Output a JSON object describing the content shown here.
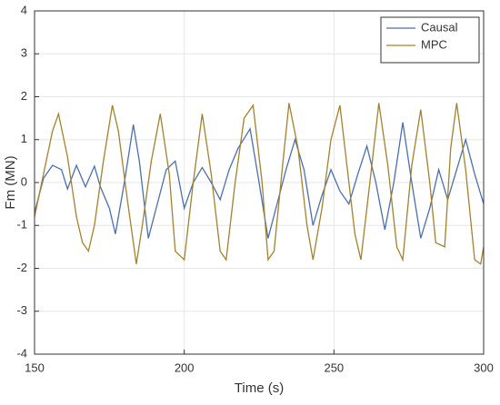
{
  "chart_data": {
    "type": "line",
    "xlabel": "Time (s)",
    "ylabel": "Fm (MN)",
    "xlim": [
      150,
      300
    ],
    "xticks": [
      150,
      200,
      250,
      300
    ],
    "ylim": [
      -4,
      4
    ],
    "yticks": [
      -4,
      -3,
      -2,
      -1,
      0,
      1,
      2,
      3,
      4
    ],
    "grid": true,
    "legend": "upper right",
    "series": [
      {
        "name": "Causal",
        "color": "#4a6fb5",
        "x": [
          150,
          153,
          156,
          159,
          161,
          164,
          167,
          170,
          172,
          175,
          177,
          180,
          183,
          185,
          188,
          191,
          194,
          197,
          200,
          203,
          206,
          209,
          212,
          215,
          218,
          222,
          225,
          228,
          231,
          234,
          237,
          240,
          243,
          246,
          249,
          252,
          255,
          258,
          261,
          264,
          267,
          270,
          273,
          276,
          279,
          282,
          285,
          288,
          291,
          294,
          297,
          300
        ],
        "values": [
          -0.7,
          0.1,
          0.4,
          0.3,
          -0.15,
          0.4,
          -0.1,
          0.38,
          -0.1,
          -0.6,
          -1.2,
          0.0,
          1.35,
          0.5,
          -1.3,
          -0.5,
          0.3,
          0.5,
          -0.6,
          0.0,
          0.35,
          0.0,
          -0.4,
          0.3,
          0.8,
          1.25,
          0.0,
          -1.3,
          -0.5,
          0.3,
          1.0,
          0.3,
          -1.0,
          -0.3,
          0.3,
          -0.2,
          -0.5,
          0.2,
          0.85,
          0.0,
          -1.1,
          0.0,
          1.4,
          0.0,
          -1.3,
          -0.6,
          0.3,
          -0.4,
          0.3,
          1.0,
          0.2,
          -0.5
        ]
      },
      {
        "name": "MPC",
        "color": "#a5822a",
        "x": [
          150,
          153,
          156,
          158,
          161,
          164,
          166,
          168,
          170,
          173,
          176,
          178,
          181,
          184,
          186,
          189,
          192,
          195,
          197,
          200,
          203,
          206,
          209,
          212,
          214,
          217,
          220,
          223,
          226,
          228,
          230,
          233,
          235,
          238,
          241,
          243,
          246,
          249,
          252,
          254,
          257,
          259,
          262,
          265,
          268,
          271,
          273,
          276,
          279,
          282,
          284,
          287,
          289,
          291,
          294,
          297,
          299,
          300
        ],
        "values": [
          -0.8,
          0.2,
          1.2,
          1.6,
          0.6,
          -0.8,
          -1.4,
          -1.6,
          -1.0,
          0.5,
          1.8,
          1.2,
          -0.4,
          -1.9,
          -1.0,
          0.5,
          1.6,
          0.2,
          -1.6,
          -1.8,
          0.0,
          1.6,
          0.2,
          -1.6,
          -1.8,
          0.0,
          1.5,
          1.8,
          0.0,
          -1.8,
          -1.6,
          0.5,
          1.85,
          0.8,
          -1.0,
          -1.8,
          -0.6,
          1.0,
          1.8,
          0.6,
          -1.2,
          -1.8,
          0.0,
          1.85,
          0.4,
          -1.5,
          -1.8,
          0.4,
          1.7,
          0.0,
          -1.4,
          -1.5,
          0.8,
          1.85,
          0.3,
          -1.8,
          -1.9,
          -1.5
        ]
      }
    ]
  }
}
